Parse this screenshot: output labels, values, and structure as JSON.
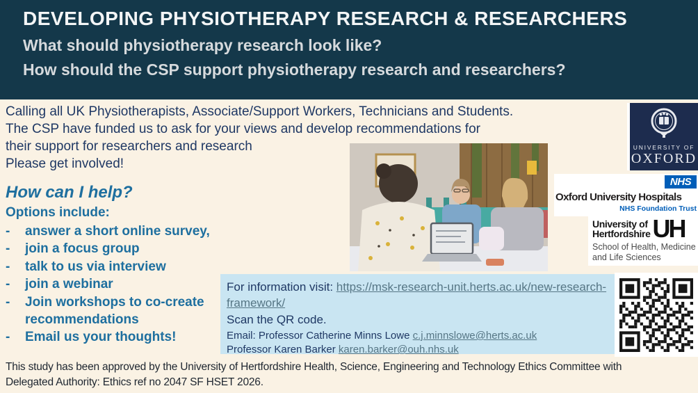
{
  "header": {
    "title": "DEVELOPING PHYSIOTHERAPY RESEARCH & RESEARCHERS",
    "subtitle1": "What should physiotherapy research look like?",
    "subtitle2": "How should the CSP support physiotherapy research and researchers?"
  },
  "intro": {
    "lines": [
      "Calling all UK Physiotherapists, Associate/Support Workers, Technicians and Students.",
      "The CSP have funded us to ask for your views and develop recommendations for",
      "their support for researchers and research",
      "Please get involved!"
    ]
  },
  "help": {
    "heading": "How can I help?",
    "subheading": "Options include:",
    "dash": "-",
    "options": [
      "answer a short online survey,",
      "join a focus group",
      "talk to us via interview",
      "join a webinar",
      "Join workshops to co-create recommendations",
      "Email us your thoughts!"
    ]
  },
  "info_box": {
    "visit_label": "For information visit: ",
    "visit_link": "https://msk-research-unit.herts.ac.uk/new-research-framework/",
    "scan_text": "Scan the QR code.",
    "email_label": "Email: Professor Catherine Minns Lowe ",
    "email_link1": "c.j.minnslowe@herts.ac.uk",
    "email2_label": "Professor Karen Barker ",
    "email_link2": "karen.barker@ouh.nhs.uk"
  },
  "logos": {
    "oxford": {
      "line1": "UNIVERSITY OF",
      "line2": "OXFORD"
    },
    "nhs": {
      "badge": "NHS",
      "org": "Oxford University Hospitals",
      "trust": "NHS Foundation Trust"
    },
    "hertfordshire": {
      "name_line1": "University of",
      "name_line2": "Hertfordshire",
      "mark": "UH",
      "school_line1": "School of Health, Medicine",
      "school_line2": "and Life Sciences"
    }
  },
  "footer": {
    "line1": "This study has been approved by the University of Hertfordshire Health, Science, Engineering and Technology Ethics Committee with",
    "line2": "Delegated Authority: Ethics ref no 2047 SF HSET 2026."
  },
  "colors": {
    "header_bg": "#14384A",
    "cream_bg": "#FAF2E4",
    "title_text": "#F3F5F6",
    "subtitle_text": "#D6DADD",
    "navy_text": "#1F3864",
    "teal_text": "#1E6F9F",
    "infobox_bg": "#C9E5F2",
    "link_color": "#567685",
    "nhs_blue": "#005EB8",
    "oxford_navy": "#1D2C4E",
    "footer_text": "#1E2630",
    "qr_black": "#161616"
  }
}
